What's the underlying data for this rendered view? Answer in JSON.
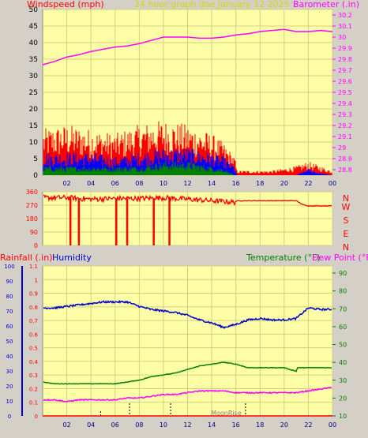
{
  "header": {
    "left_title": "Windspeed (mph)",
    "center_title": "24 hour graph dae   January 12 2025",
    "right_title": "Barometer (.in)"
  },
  "colors": {
    "background": "#d4d0c8",
    "plot_background": "#ffffa8",
    "wind_gust": "#ff0000",
    "wind_avg": "#0000ff",
    "wind_low": "#008000",
    "barometer": "#ff00ff",
    "direction": "#ff0000",
    "humidity": "#0000cc",
    "temperature": "#008000",
    "dew_point": "#ff00ff",
    "rainfall": "#ff0000",
    "grid": "#d0d080"
  },
  "chart_data": [
    {
      "type": "line",
      "name": "wind-barometer",
      "x_ticks": [
        "02",
        "04",
        "06",
        "08",
        "10",
        "12",
        "14",
        "16",
        "18",
        "20",
        "22",
        "00"
      ],
      "left_ticks": [
        "0",
        "5",
        "10",
        "15",
        "20",
        "25",
        "30",
        "35",
        "40",
        "45",
        "50"
      ],
      "left_ylim": [
        0,
        50
      ],
      "right_ticks": [
        "28.8",
        "28.9",
        "29",
        "29.1",
        "29.2",
        "29.3",
        "29.4",
        "29.5",
        "29.6",
        "29.7",
        "29.8",
        "29.9",
        "30",
        "30.1",
        "30.2"
      ],
      "right_ylim": [
        28.75,
        30.25
      ],
      "grid": true,
      "barometer": {
        "x": [
          0,
          1,
          2,
          3,
          4,
          5,
          6,
          7,
          8,
          9,
          10,
          11,
          12,
          13,
          14,
          15,
          16,
          17,
          18,
          19,
          20,
          21,
          22,
          23,
          24
        ],
        "y": [
          29.75,
          29.78,
          29.82,
          29.84,
          29.87,
          29.89,
          29.91,
          29.92,
          29.94,
          29.97,
          30.0,
          30.0,
          30.0,
          29.99,
          29.99,
          30.0,
          30.02,
          30.03,
          30.05,
          30.06,
          30.07,
          30.05,
          30.05,
          30.06,
          30.05
        ]
      },
      "wind_gust_level": {
        "x": [
          0,
          2,
          4,
          6,
          8,
          10,
          12,
          14,
          15,
          15.9,
          16.1,
          17,
          18,
          19,
          20,
          21,
          22,
          23,
          24
        ],
        "y": [
          10,
          11,
          10,
          9,
          11,
          12,
          11,
          9,
          7,
          4,
          1,
          1,
          1,
          1,
          1.5,
          2,
          3,
          2,
          1
        ]
      },
      "wind_avg_level": {
        "x": [
          0,
          2,
          4,
          6,
          8,
          10,
          12,
          14,
          15,
          15.9,
          16.1,
          17,
          18,
          19,
          20,
          21,
          22,
          23,
          24
        ],
        "y": [
          5,
          5,
          5,
          4,
          5,
          6,
          6,
          5,
          4,
          2,
          0,
          0,
          0,
          0,
          0,
          0,
          1.5,
          0.5,
          0
        ]
      },
      "wind_low_level": {
        "x": [
          0,
          2,
          4,
          6,
          8,
          10,
          12,
          14,
          15,
          15.9,
          16.1,
          24
        ],
        "y": [
          2,
          2,
          2,
          2,
          2,
          3,
          3,
          2,
          1.5,
          0,
          0,
          0
        ]
      }
    },
    {
      "type": "scatter",
      "name": "wind-direction",
      "x_ticks": [
        "02",
        "04",
        "06",
        "08",
        "10",
        "12",
        "14",
        "16",
        "18",
        "20",
        "22",
        "00"
      ],
      "left_ticks": [
        "0",
        "90",
        "180",
        "270",
        "360"
      ],
      "ylim": [
        0,
        360
      ],
      "right_labels": [
        "N",
        "W",
        "S",
        "E",
        "N"
      ],
      "direction": {
        "x": [
          0,
          2,
          4,
          6,
          8,
          10,
          12,
          14,
          15.9,
          16.1,
          17,
          18,
          19,
          20,
          21,
          21.5,
          22,
          23,
          24
        ],
        "y": [
          320,
          320,
          310,
          315,
          315,
          320,
          310,
          300,
          290,
          300,
          300,
          300,
          300,
          300,
          300,
          275,
          265,
          265,
          265
        ]
      },
      "dips_x": [
        2.3,
        3.0,
        6.1,
        7.0,
        9.2,
        10.5
      ]
    },
    {
      "type": "line",
      "name": "temp-humidity-rain",
      "left_title": "Rainfall (.in)",
      "left_title2": "Humidity",
      "right_title": "Temperature (°F)",
      "right_title2": "Dew Point (°F)",
      "x_ticks": [
        "02",
        "04",
        "06",
        "08",
        "10",
        "12",
        "14",
        "16",
        "18",
        "20",
        "22",
        "00"
      ],
      "humidity_ticks": [
        "0",
        "10",
        "20",
        "30",
        "40",
        "50",
        "60",
        "70",
        "80",
        "90",
        "100"
      ],
      "humidity_ylim": [
        0,
        100
      ],
      "rain_ticks": [
        "0",
        "0.1",
        "0.2",
        "0.3",
        "0.4",
        "0.5",
        "0.6",
        "0.7",
        "0.8",
        "0.9",
        "1",
        "1.1"
      ],
      "rain_ylim": [
        0,
        1.1
      ],
      "temp_ticks": [
        "10",
        "20",
        "30",
        "40",
        "50",
        "60",
        "70",
        "80",
        "90"
      ],
      "temp_ylim": [
        10,
        94
      ],
      "annotation": "MoonRise",
      "humidity": {
        "x": [
          0,
          1,
          2,
          3,
          4,
          5,
          6,
          7,
          8,
          9,
          10,
          11,
          12,
          13,
          14,
          15,
          16,
          17,
          18,
          19,
          20,
          21,
          22,
          23,
          24
        ],
        "y": [
          72,
          72,
          73,
          74,
          75,
          76,
          76,
          76,
          73,
          71,
          70,
          69,
          67,
          64,
          62,
          59,
          61,
          64,
          65,
          64,
          64,
          65,
          72,
          71,
          71
        ]
      },
      "temperature": {
        "x": [
          0,
          1,
          2,
          3,
          4,
          5,
          6,
          7,
          8,
          9,
          10,
          11,
          12,
          13,
          14,
          15,
          16,
          17,
          18,
          19,
          20,
          21,
          21.1,
          22,
          23,
          24
        ],
        "y": [
          29,
          28,
          28,
          28,
          28,
          28,
          28,
          29,
          30,
          32,
          33,
          34,
          36,
          38,
          39,
          40,
          39,
          37,
          37,
          37,
          37,
          35,
          37,
          37,
          37,
          37
        ]
      },
      "dew_point": {
        "x": [
          0,
          1,
          2,
          3,
          4,
          5,
          6,
          7,
          8,
          9,
          10,
          11,
          12,
          13,
          14,
          15,
          16,
          17,
          18,
          19,
          20,
          21,
          22,
          23,
          24
        ],
        "y": [
          19,
          19,
          18,
          19,
          19,
          19,
          19,
          20,
          20,
          21,
          22,
          22,
          23,
          24,
          24,
          24,
          23,
          23,
          23,
          23,
          23,
          23,
          24,
          25,
          26
        ]
      },
      "rainfall": {
        "x": [
          0,
          24
        ],
        "y": [
          0,
          0
        ]
      }
    }
  ]
}
